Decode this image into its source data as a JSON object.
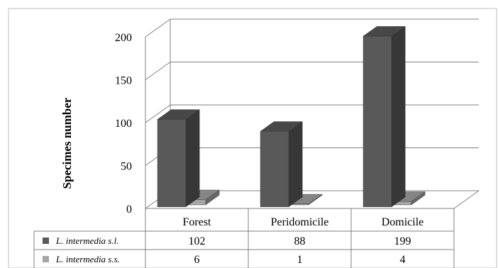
{
  "chart_data": {
    "type": "bar",
    "categories": [
      "Forest",
      "Peridomicile",
      "Domicile"
    ],
    "series": [
      {
        "name": "L. intermedia s.l.",
        "values": [
          102,
          88,
          199
        ],
        "color": "#595959"
      },
      {
        "name": "L. intermedia s.s.",
        "values": [
          6,
          1,
          4
        ],
        "color": "#a6a6a6"
      }
    ],
    "ylabel": "Specimes number",
    "yticks": [
      "0",
      "50",
      "100",
      "150",
      "200"
    ],
    "ylim": [
      0,
      200
    ],
    "grid": true,
    "legend": "data-table-left",
    "three_d": true
  }
}
